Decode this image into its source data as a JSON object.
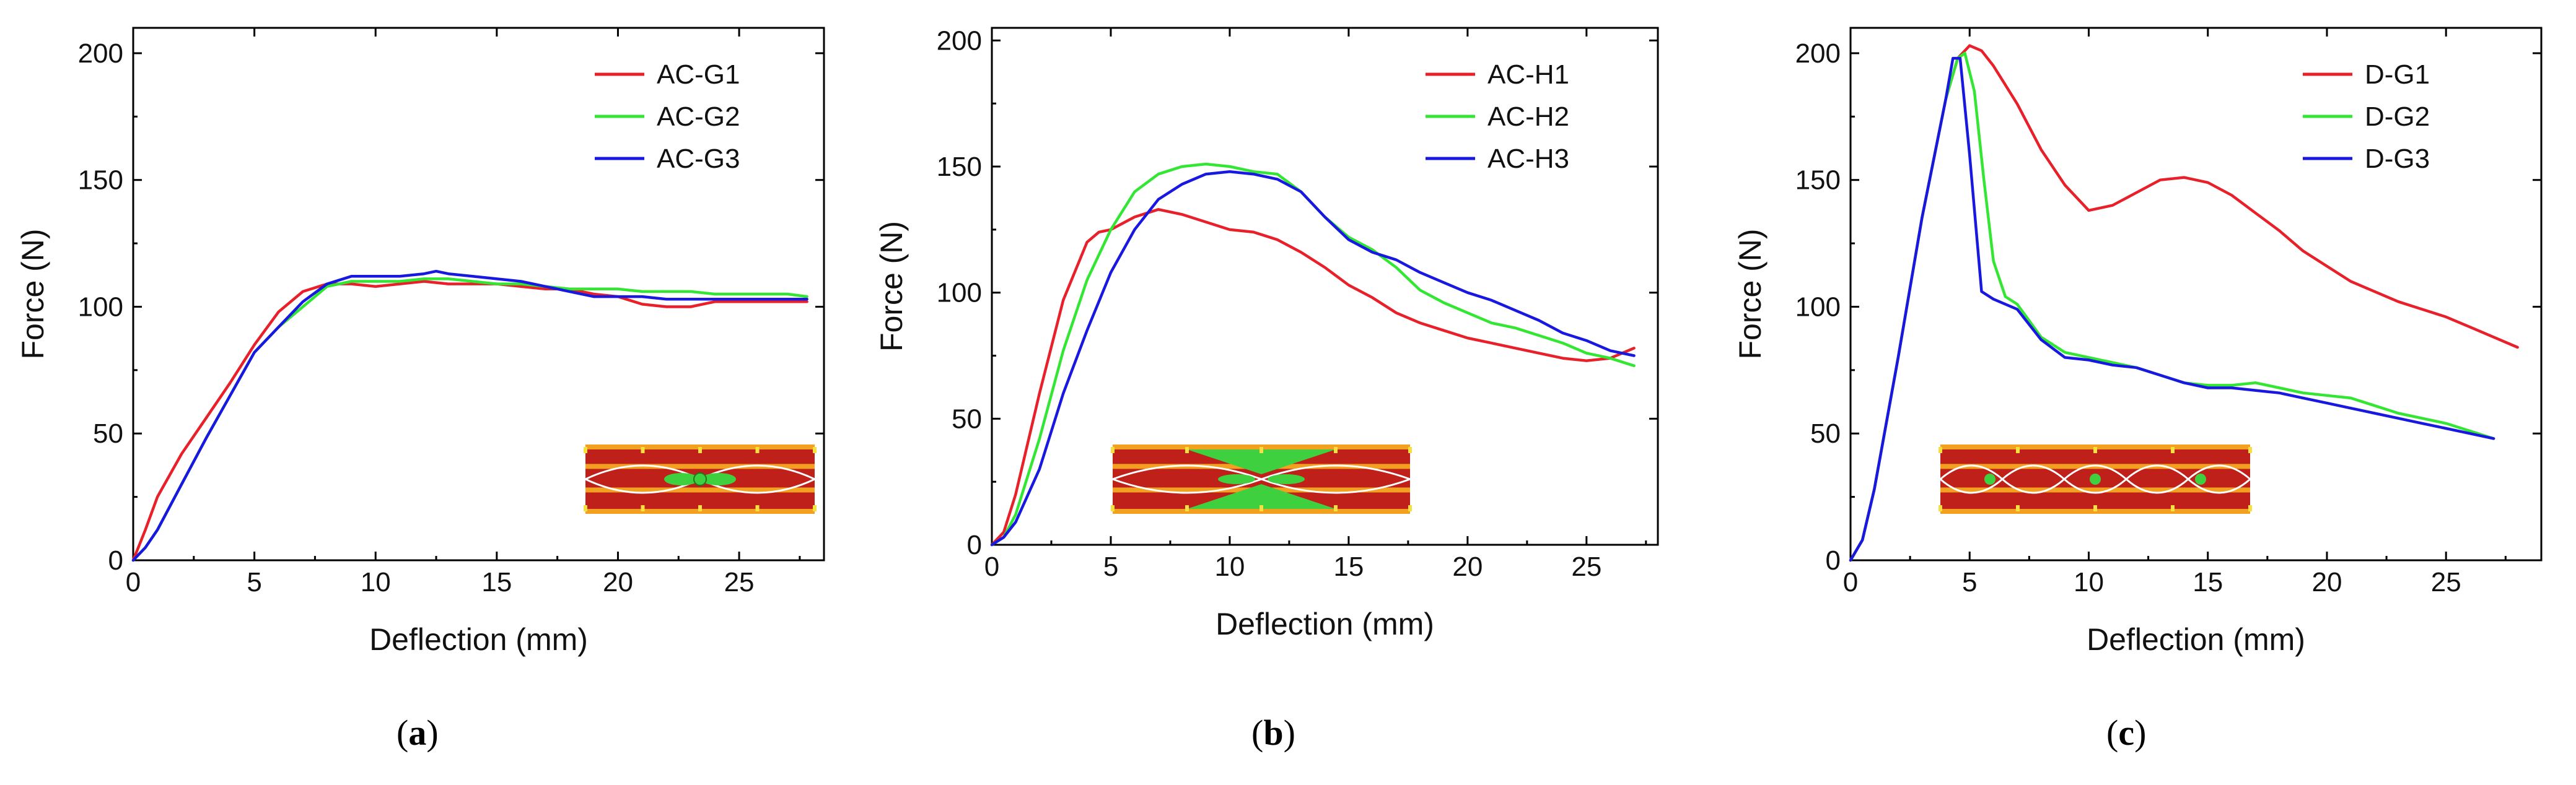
{
  "chart_data": [
    {
      "type": "line",
      "panel_label": "a",
      "xlabel": "Deflection (mm)",
      "ylabel": "Force (N)",
      "xlim": [
        0,
        28.5
      ],
      "ylim": [
        0,
        210
      ],
      "xticks": [
        0,
        5,
        10,
        15,
        20,
        25
      ],
      "yticks": [
        0,
        50,
        100,
        150,
        200
      ],
      "inset": "green_center",
      "series": [
        {
          "name": "AC-G1",
          "color": "#e8202a",
          "x": [
            0,
            0.5,
            1,
            2,
            3,
            4,
            5,
            6,
            7,
            8,
            9,
            10,
            11,
            12,
            13,
            14,
            15,
            16,
            17,
            18,
            19,
            20,
            21,
            22,
            23,
            24,
            25,
            26,
            27,
            27.8
          ],
          "y": [
            0,
            12,
            25,
            42,
            56,
            70,
            85,
            98,
            106,
            109,
            109,
            108,
            109,
            110,
            109,
            109,
            109,
            108,
            107,
            107,
            105,
            104,
            101,
            100,
            100,
            102,
            102,
            102,
            102,
            102
          ]
        },
        {
          "name": "AC-G2",
          "color": "#33e633",
          "x": [
            0,
            0.5,
            1,
            2,
            3,
            4,
            5,
            6,
            7,
            8,
            9,
            10,
            11,
            12,
            13,
            14,
            15,
            16,
            17,
            18,
            19,
            20,
            21,
            22,
            23,
            24,
            25,
            26,
            27,
            27.8
          ],
          "y": [
            0,
            5,
            12,
            30,
            48,
            65,
            82,
            92,
            100,
            108,
            110,
            110,
            110,
            111,
            111,
            110,
            109,
            109,
            108,
            107,
            107,
            107,
            106,
            106,
            106,
            105,
            105,
            105,
            105,
            104
          ]
        },
        {
          "name": "AC-G3",
          "color": "#1818e0",
          "x": [
            0,
            0.5,
            1,
            2,
            3,
            4,
            5,
            6,
            7,
            8,
            9,
            10,
            11,
            12,
            12.5,
            13,
            14,
            15,
            16,
            17,
            18,
            19,
            20,
            21,
            22,
            23,
            24,
            25,
            26,
            27,
            27.8
          ],
          "y": [
            0,
            5,
            12,
            30,
            48,
            65,
            82,
            92,
            102,
            109,
            112,
            112,
            112,
            113,
            114,
            113,
            112,
            111,
            110,
            108,
            106,
            104,
            104,
            104,
            103,
            103,
            103,
            103,
            103,
            103,
            103
          ]
        }
      ]
    },
    {
      "type": "line",
      "panel_label": "b",
      "xlabel": "Deflection (mm)",
      "ylabel": "Force (N)",
      "xlim": [
        0,
        28
      ],
      "ylim": [
        0,
        205
      ],
      "xticks": [
        0,
        5,
        10,
        15,
        20,
        25
      ],
      "yticks": [
        0,
        50,
        100,
        150,
        200
      ],
      "inset": "green_wings",
      "series": [
        {
          "name": "AC-H1",
          "color": "#e8202a",
          "x": [
            0,
            0.5,
            1,
            2,
            3,
            4,
            4.5,
            5,
            6,
            7,
            8,
            9,
            10,
            11,
            12,
            13,
            14,
            15,
            16,
            17,
            18,
            19,
            20,
            21,
            22,
            23,
            24,
            25,
            26,
            27
          ],
          "y": [
            0,
            5,
            20,
            60,
            97,
            120,
            124,
            125,
            130,
            133,
            131,
            128,
            125,
            124,
            121,
            116,
            110,
            103,
            98,
            92,
            88,
            85,
            82,
            80,
            78,
            76,
            74,
            73,
            74,
            78
          ]
        },
        {
          "name": "AC-H2",
          "color": "#33e633",
          "x": [
            0,
            0.5,
            1,
            2,
            3,
            4,
            5,
            6,
            7,
            8,
            9,
            10,
            11,
            12,
            13,
            14,
            15,
            16,
            17,
            18,
            19,
            20,
            21,
            22,
            23,
            24,
            25,
            26,
            27
          ],
          "y": [
            0,
            3,
            12,
            42,
            77,
            105,
            125,
            140,
            147,
            150,
            151,
            150,
            148,
            147,
            140,
            130,
            122,
            117,
            110,
            101,
            96,
            92,
            88,
            86,
            83,
            80,
            76,
            74,
            71
          ]
        },
        {
          "name": "AC-H3",
          "color": "#1818e0",
          "x": [
            0,
            0.5,
            1,
            2,
            3,
            4,
            5,
            6,
            7,
            8,
            9,
            10,
            11,
            12,
            13,
            14,
            15,
            16,
            17,
            18,
            19,
            20,
            21,
            22,
            23,
            24,
            25,
            26,
            27
          ],
          "y": [
            0,
            3,
            9,
            30,
            60,
            85,
            108,
            125,
            137,
            143,
            147,
            148,
            147,
            145,
            140,
            130,
            121,
            116,
            113,
            108,
            104,
            100,
            97,
            93,
            89,
            84,
            81,
            77,
            75
          ]
        }
      ]
    },
    {
      "type": "line",
      "panel_label": "c",
      "xlabel": "Deflection (mm)",
      "ylabel": "Force (N)",
      "xlim": [
        0,
        29
      ],
      "ylim": [
        0,
        210
      ],
      "xticks": [
        0,
        5,
        10,
        15,
        20,
        25
      ],
      "yticks": [
        0,
        50,
        100,
        150,
        200
      ],
      "inset": "green_dots",
      "series": [
        {
          "name": "D-G1",
          "color": "#e8202a",
          "x": [
            0,
            0.5,
            1,
            2,
            3,
            4,
            4.5,
            5,
            5.5,
            6,
            7,
            8,
            9,
            10,
            11,
            12,
            13,
            14,
            15,
            16,
            17,
            18,
            19,
            20,
            21,
            22,
            23,
            24,
            25,
            26,
            27,
            28
          ],
          "y": [
            0,
            8,
            28,
            80,
            135,
            182,
            198,
            203,
            201,
            195,
            180,
            162,
            148,
            138,
            140,
            145,
            150,
            151,
            149,
            144,
            137,
            130,
            122,
            116,
            110,
            106,
            102,
            99,
            96,
            92,
            88,
            84
          ]
        },
        {
          "name": "D-G2",
          "color": "#33e633",
          "x": [
            0,
            0.5,
            1,
            2,
            3,
            4,
            4.5,
            4.8,
            5.2,
            5.6,
            6,
            6.5,
            7,
            8,
            9,
            10,
            11,
            12,
            13,
            14,
            15,
            16,
            17,
            18,
            19,
            20,
            21,
            22,
            23,
            24,
            25,
            26,
            27
          ],
          "y": [
            0,
            8,
            28,
            80,
            135,
            182,
            198,
            200,
            185,
            150,
            118,
            104,
            101,
            88,
            82,
            80,
            78,
            76,
            73,
            70,
            69,
            69,
            70,
            68,
            66,
            65,
            64,
            61,
            58,
            56,
            54,
            51,
            48
          ]
        },
        {
          "name": "D-G3",
          "color": "#1818e0",
          "x": [
            0,
            0.5,
            1,
            2,
            3,
            4,
            4.3,
            4.6,
            5,
            5.5,
            6,
            7,
            8,
            9,
            10,
            11,
            12,
            13,
            14,
            15,
            16,
            17,
            18,
            19,
            20,
            21,
            22,
            23,
            24,
            25,
            26,
            27
          ],
          "y": [
            0,
            8,
            28,
            80,
            135,
            182,
            198,
            198,
            160,
            106,
            103,
            99,
            87,
            80,
            79,
            77,
            76,
            73,
            70,
            68,
            68,
            67,
            66,
            64,
            62,
            60,
            58,
            56,
            54,
            52,
            50,
            48
          ]
        }
      ]
    }
  ],
  "captions": [
    {
      "open": "(",
      "letter": "a",
      "close": ")"
    },
    {
      "open": "(",
      "letter": "b",
      "close": ")"
    },
    {
      "open": "(",
      "letter": "c",
      "close": ")"
    }
  ]
}
